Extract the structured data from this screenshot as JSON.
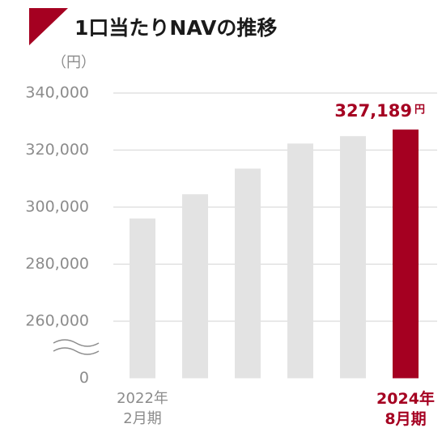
{
  "chart_data": {
    "type": "bar",
    "title": "1口当たりNAVの推移",
    "y_unit": "（円）",
    "categories": [
      "2022年\n2月期",
      null,
      null,
      null,
      null,
      "2024年\n8月期"
    ],
    "values": [
      296000,
      304500,
      313500,
      322300,
      324900,
      327189
    ],
    "value_labels": [
      null,
      null,
      null,
      null,
      null,
      "327,189"
    ],
    "value_label_unit": "円",
    "colors": [
      "#e3e3e3",
      "#e3e3e3",
      "#e3e3e3",
      "#e3e3e3",
      "#e3e3e3",
      "#a50021"
    ],
    "ylim": [
      0,
      340000
    ],
    "broken_axis": true,
    "yticks": [
      0,
      {
        "value": 260000,
        "label": "260,000"
      },
      {
        "value": 280000,
        "label": "280,000"
      },
      {
        "value": 300000,
        "label": "300,000"
      },
      {
        "value": 320000,
        "label": "320,000"
      },
      {
        "value": 340000,
        "label": "340,000"
      }
    ],
    "grid": true
  }
}
